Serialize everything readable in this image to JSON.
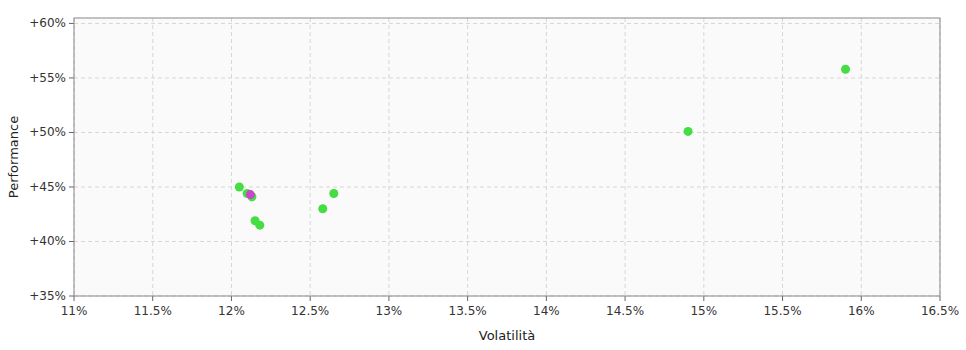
{
  "chart_data": {
    "type": "scatter",
    "xlabel": "Volatilità",
    "ylabel": "Performance",
    "grid": true,
    "xlim": [
      0.11,
      0.165
    ],
    "ylim": [
      0.35,
      0.605
    ],
    "xticks": [
      {
        "value": 0.11,
        "label": "11%"
      },
      {
        "value": 0.115,
        "label": "11.5%"
      },
      {
        "value": 0.12,
        "label": "12%"
      },
      {
        "value": 0.125,
        "label": "12.5%"
      },
      {
        "value": 0.13,
        "label": "13%"
      },
      {
        "value": 0.135,
        "label": "13.5%"
      },
      {
        "value": 0.14,
        "label": "14%"
      },
      {
        "value": 0.145,
        "label": "14.5%"
      },
      {
        "value": 0.15,
        "label": "15%"
      },
      {
        "value": 0.155,
        "label": "15.5%"
      },
      {
        "value": 0.16,
        "label": "16%"
      },
      {
        "value": 0.165,
        "label": "16.5%"
      }
    ],
    "yticks": [
      {
        "value": 0.35,
        "label": "+35%"
      },
      {
        "value": 0.4,
        "label": "+40%"
      },
      {
        "value": 0.45,
        "label": "+45%"
      },
      {
        "value": 0.5,
        "label": "+50%"
      },
      {
        "value": 0.55,
        "label": "+55%"
      },
      {
        "value": 0.6,
        "label": "+60%"
      }
    ],
    "series": [
      {
        "color": "#44dd44",
        "x": [
          0.1205,
          0.121,
          0.1213,
          0.1215,
          0.1218,
          0.1258,
          0.1265,
          0.149,
          0.159
        ],
        "values": [
          0.45,
          0.444,
          0.441,
          0.419,
          0.415,
          0.43,
          0.444,
          0.501,
          0.558
        ]
      },
      {
        "color": "#cc44cc",
        "x": [
          0.1212
        ],
        "values": [
          0.443
        ]
      }
    ]
  }
}
